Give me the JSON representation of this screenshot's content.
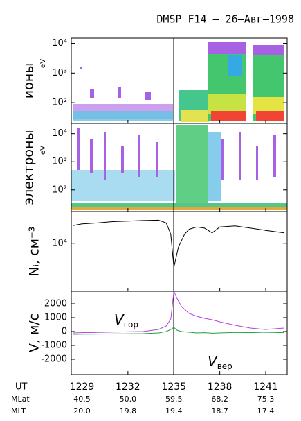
{
  "title": "DMSP F14 – 26–Авг–1998",
  "chart_data": [
    {
      "type": "spectrogram",
      "ylabel": "ионы",
      "yunit": "eV",
      "log": true,
      "ylim": [
        20,
        15000
      ],
      "yticks": [
        {
          "value": 100,
          "label": "10²"
        },
        {
          "value": 1000,
          "label": "10³"
        },
        {
          "value": 10000,
          "label": "10⁴"
        }
      ]
    },
    {
      "type": "spectrogram",
      "ylabel": "электроны",
      "yunit": "eV",
      "log": true,
      "ylim": [
        17,
        23000
      ],
      "yticks": [
        {
          "value": 100,
          "label": "10²"
        },
        {
          "value": 1000,
          "label": "10³"
        },
        {
          "value": 10000,
          "label": "10⁴"
        }
      ]
    },
    {
      "type": "line",
      "ylabel": "Nᵢ, см⁻³",
      "log": true,
      "ylim": [
        2500,
        25000
      ],
      "yticks": [
        {
          "value": 10000,
          "label": "10⁴"
        }
      ],
      "x": [
        1228.4,
        1229,
        1230,
        1231,
        1232,
        1233,
        1234,
        1234.5,
        1234.8,
        1235,
        1235.3,
        1235.7,
        1236,
        1236.5,
        1237,
        1237.5,
        1238,
        1239,
        1240,
        1241,
        1242.2
      ],
      "series": [
        {
          "color": "#000000",
          "values": [
            16700,
            17500,
            18000,
            18700,
            19000,
            19300,
            19500,
            18000,
            13000,
            5000,
            9000,
            13000,
            15000,
            16000,
            15500,
            13500,
            16000,
            16500,
            15500,
            14500,
            13500
          ]
        }
      ]
    },
    {
      "type": "line",
      "ylabel": "V, м/с",
      "ylim": [
        -3100,
        2900
      ],
      "yticks": [
        -2000,
        -1000,
        0,
        1000,
        2000
      ],
      "xlabel": "UT",
      "xlim": [
        1228.3,
        1242.4
      ],
      "xticks": [
        1229,
        1232,
        1235,
        1238,
        1241
      ],
      "x": [
        1228.4,
        1229,
        1230,
        1231,
        1232,
        1233,
        1234,
        1234.5,
        1234.8,
        1235,
        1235.2,
        1235.5,
        1236,
        1236.5,
        1237,
        1237.5,
        1238,
        1239,
        1240,
        1241,
        1242.2
      ],
      "series": [
        {
          "name": "Vгор",
          "color": "#b040e0",
          "values": [
            -100,
            -80,
            -60,
            -40,
            -20,
            0,
            150,
            400,
            900,
            2900,
            2400,
            1800,
            1300,
            1100,
            950,
            850,
            700,
            450,
            250,
            150,
            250
          ]
        },
        {
          "name": "Vвер",
          "color": "#20a040",
          "values": [
            -200,
            -190,
            -180,
            -170,
            -160,
            -150,
            -100,
            0,
            150,
            300,
            100,
            0,
            -50,
            -100,
            -80,
            -120,
            -100,
            -60,
            -80,
            -50,
            -80
          ]
        }
      ]
    }
  ],
  "ephemeris": [
    {
      "label": "MLat",
      "values": [
        "40.5",
        "50.0",
        "59.5",
        "68.2",
        "75.3"
      ]
    },
    {
      "label": "MLT",
      "values": [
        "20.0",
        "19.8",
        "19.4",
        "18.7",
        "17.4"
      ]
    }
  ]
}
